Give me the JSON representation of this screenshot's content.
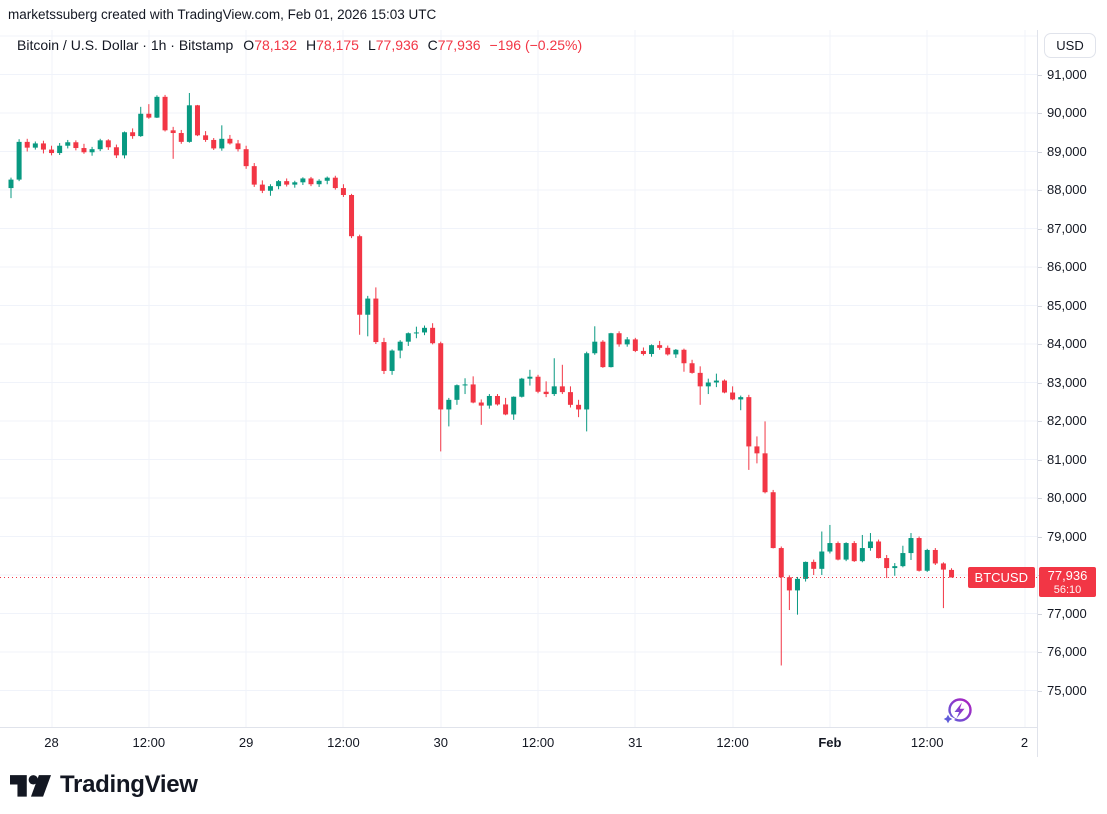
{
  "attribution": "marketssuberg created with TradingView.com, Feb 01, 2026 15:03 UTC",
  "header": {
    "symbol_title": "Bitcoin / U.S. Dollar · 1h · Bitstamp",
    "o_label": "O",
    "o_value": "78,132",
    "h_label": "H",
    "h_value": "78,175",
    "l_label": "L",
    "l_value": "77,936",
    "c_label": "C",
    "c_value": "77,936",
    "change": "−196 (−0.25%)"
  },
  "axis": {
    "currency_button": "USD",
    "price_tag": {
      "symbol": "BTCUSD",
      "price": "77,936",
      "countdown": "56:10"
    }
  },
  "footer": {
    "logo_text": "TradingView",
    "logo_icon": "tradingview-logo-mark"
  },
  "icons": {
    "boost": "lightning-circle-boost-icon"
  },
  "colors": {
    "up": "#089981",
    "down": "#F23645",
    "grid": "#F0F3FA",
    "axis_text": "#131722",
    "separator": "#E0E3EB",
    "price_line": "#F23645",
    "boost_gradient_start": "#5F5CD9",
    "boost_gradient_end": "#B01FBF"
  },
  "chart_data": {
    "type": "candlestick",
    "title": "Bitcoin / U.S. Dollar",
    "symbol": "BTCUSD",
    "exchange": "Bitstamp",
    "interval": "1h",
    "start_time": "2026-01-27 19:00 UTC",
    "interval_hours": 1,
    "current_price": 77936,
    "current_candle": {
      "open": 78132,
      "high": 78175,
      "low": 77936,
      "close": 77936,
      "change": -196,
      "change_pct": -0.25
    },
    "y_axis": {
      "currency": "USD",
      "ticks": [
        91000,
        90000,
        89000,
        88000,
        87000,
        86000,
        85000,
        84000,
        83000,
        82000,
        81000,
        80000,
        79000,
        78000,
        77000,
        76000,
        75000
      ],
      "range_visible": [
        74000,
        91600
      ]
    },
    "x_axis": {
      "ticks": [
        {
          "label": "28",
          "i": 5,
          "bold": false
        },
        {
          "label": "12:00",
          "i": 17,
          "bold": false
        },
        {
          "label": "29",
          "i": 29,
          "bold": false
        },
        {
          "label": "12:00",
          "i": 41,
          "bold": false
        },
        {
          "label": "30",
          "i": 53,
          "bold": false
        },
        {
          "label": "12:00",
          "i": 65,
          "bold": false
        },
        {
          "label": "31",
          "i": 77,
          "bold": false
        },
        {
          "label": "12:00",
          "i": 89,
          "bold": false
        },
        {
          "label": "Feb",
          "i": 101,
          "bold": true
        },
        {
          "label": "12:00",
          "i": 113,
          "bold": false
        },
        {
          "label": "2",
          "i": 125,
          "bold": false
        }
      ]
    },
    "candles": [
      [
        88050,
        88320,
        87790,
        88270
      ],
      [
        88270,
        89320,
        88230,
        89250
      ],
      [
        89250,
        89330,
        89000,
        89100
      ],
      [
        89100,
        89260,
        89050,
        89210
      ],
      [
        89210,
        89280,
        88950,
        89050
      ],
      [
        89050,
        89150,
        88900,
        88960
      ],
      [
        88960,
        89220,
        88910,
        89150
      ],
      [
        89150,
        89300,
        89080,
        89240
      ],
      [
        89240,
        89290,
        89030,
        89090
      ],
      [
        89090,
        89200,
        88940,
        88980
      ],
      [
        88980,
        89120,
        88890,
        89060
      ],
      [
        89060,
        89330,
        89010,
        89290
      ],
      [
        89290,
        89320,
        89040,
        89110
      ],
      [
        89110,
        89180,
        88830,
        88900
      ],
      [
        88900,
        89520,
        88820,
        89500
      ],
      [
        89500,
        89600,
        89330,
        89400
      ],
      [
        89400,
        90160,
        89380,
        89980
      ],
      [
        89980,
        90230,
        89850,
        89880
      ],
      [
        89880,
        90460,
        89870,
        90420
      ],
      [
        90420,
        90470,
        89520,
        89550
      ],
      [
        89550,
        89640,
        88810,
        89480
      ],
      [
        89480,
        89560,
        89200,
        89250
      ],
      [
        89250,
        90520,
        89230,
        90200
      ],
      [
        90200,
        90210,
        89400,
        89420
      ],
      [
        89420,
        89530,
        89250,
        89300
      ],
      [
        89300,
        89350,
        89040,
        89080
      ],
      [
        89080,
        89680,
        89020,
        89330
      ],
      [
        89330,
        89430,
        89180,
        89210
      ],
      [
        89210,
        89300,
        89000,
        89060
      ],
      [
        89060,
        89150,
        88550,
        88620
      ],
      [
        88620,
        88700,
        88080,
        88140
      ],
      [
        88140,
        88250,
        87920,
        87980
      ],
      [
        87980,
        88150,
        87850,
        88100
      ],
      [
        88100,
        88260,
        88020,
        88230
      ],
      [
        88230,
        88300,
        88090,
        88140
      ],
      [
        88140,
        88240,
        88060,
        88200
      ],
      [
        88200,
        88330,
        88130,
        88300
      ],
      [
        88300,
        88340,
        88100,
        88150
      ],
      [
        88150,
        88280,
        88080,
        88240
      ],
      [
        88240,
        88350,
        88150,
        88320
      ],
      [
        88320,
        88370,
        88010,
        88050
      ],
      [
        88050,
        88150,
        87820,
        87870
      ],
      [
        87870,
        87900,
        86750,
        86800
      ],
      [
        86800,
        86840,
        84240,
        84760
      ],
      [
        84760,
        85250,
        84200,
        85180
      ],
      [
        85180,
        85470,
        84000,
        84050
      ],
      [
        84050,
        84160,
        83220,
        83300
      ],
      [
        83300,
        83860,
        83200,
        83830
      ],
      [
        83830,
        84100,
        83630,
        84060
      ],
      [
        84060,
        84300,
        83950,
        84280
      ],
      [
        84280,
        84450,
        84150,
        84300
      ],
      [
        84300,
        84480,
        84230,
        84420
      ],
      [
        84420,
        84540,
        83990,
        84020
      ],
      [
        84020,
        84060,
        81210,
        82300
      ],
      [
        82300,
        82600,
        81860,
        82550
      ],
      [
        82550,
        82950,
        82420,
        82930
      ],
      [
        82930,
        83110,
        82700,
        82950
      ],
      [
        82950,
        83160,
        82460,
        82480
      ],
      [
        82480,
        82560,
        81900,
        82400
      ],
      [
        82400,
        82700,
        82320,
        82650
      ],
      [
        82650,
        82700,
        82400,
        82430
      ],
      [
        82430,
        82600,
        82150,
        82170
      ],
      [
        82170,
        82640,
        82030,
        82630
      ],
      [
        82630,
        83120,
        82610,
        83100
      ],
      [
        83100,
        83330,
        82920,
        83150
      ],
      [
        83150,
        83200,
        82720,
        82760
      ],
      [
        82760,
        83030,
        82620,
        82700
      ],
      [
        82700,
        83630,
        82650,
        82900
      ],
      [
        82900,
        83460,
        82700,
        82750
      ],
      [
        82750,
        82900,
        82350,
        82420
      ],
      [
        82420,
        82550,
        82100,
        82300
      ],
      [
        82300,
        83800,
        81730,
        83760
      ],
      [
        83760,
        84460,
        83720,
        84060
      ],
      [
        84060,
        84100,
        83380,
        83400
      ],
      [
        83400,
        84290,
        83390,
        84280
      ],
      [
        84280,
        84330,
        83930,
        83990
      ],
      [
        83990,
        84180,
        83930,
        84120
      ],
      [
        84120,
        84160,
        83790,
        83820
      ],
      [
        83820,
        83910,
        83700,
        83740
      ],
      [
        83740,
        83990,
        83670,
        83970
      ],
      [
        83970,
        84080,
        83850,
        83900
      ],
      [
        83900,
        83960,
        83700,
        83730
      ],
      [
        83730,
        83870,
        83640,
        83850
      ],
      [
        83850,
        83880,
        83280,
        83500
      ],
      [
        83500,
        83590,
        83230,
        83250
      ],
      [
        83250,
        83420,
        82420,
        82900
      ],
      [
        82900,
        83100,
        82700,
        83000
      ],
      [
        83000,
        83230,
        82880,
        83050
      ],
      [
        83050,
        83080,
        82720,
        82740
      ],
      [
        82740,
        82900,
        82540,
        82560
      ],
      [
        82560,
        82660,
        82280,
        82620
      ],
      [
        82620,
        82680,
        80730,
        81340
      ],
      [
        81340,
        81600,
        80900,
        81160
      ],
      [
        81160,
        81990,
        80120,
        80150
      ],
      [
        80150,
        80210,
        78690,
        78700
      ],
      [
        78700,
        78740,
        75650,
        77940
      ],
      [
        77940,
        77990,
        77090,
        77600
      ],
      [
        77600,
        77950,
        76970,
        77900
      ],
      [
        77900,
        78350,
        77830,
        78340
      ],
      [
        78340,
        78400,
        78000,
        78160
      ],
      [
        78160,
        79130,
        78000,
        78610
      ],
      [
        78610,
        79300,
        78560,
        78830
      ],
      [
        78830,
        78870,
        78380,
        78400
      ],
      [
        78400,
        78850,
        78360,
        78830
      ],
      [
        78830,
        78880,
        78340,
        78360
      ],
      [
        78360,
        79040,
        78330,
        78700
      ],
      [
        78700,
        79090,
        78630,
        78870
      ],
      [
        78870,
        78920,
        78430,
        78440
      ],
      [
        78440,
        78520,
        77920,
        78180
      ],
      [
        78180,
        78310,
        77980,
        78230
      ],
      [
        78230,
        78760,
        78200,
        78570
      ],
      [
        78570,
        79090,
        78390,
        78960
      ],
      [
        78960,
        79000,
        78090,
        78110
      ],
      [
        78110,
        78680,
        78080,
        78650
      ],
      [
        78650,
        78700,
        78260,
        78300
      ],
      [
        78300,
        78330,
        77140,
        78140
      ],
      [
        78132,
        78175,
        77936,
        77936
      ]
    ]
  }
}
